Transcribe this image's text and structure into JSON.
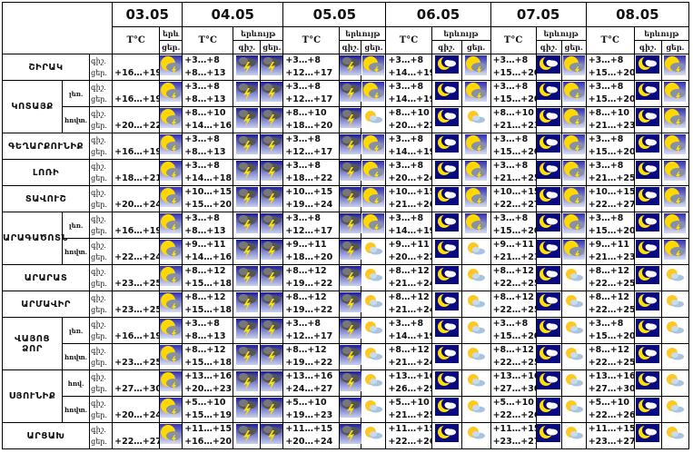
{
  "header": {
    "dates": [
      "03.05",
      "04.05",
      "05.05",
      "06.05",
      "07.05",
      "08.05"
    ],
    "temp_label": "T°C",
    "phenomenon_label": "երևույթ",
    "phenomenon_label_short": "երև",
    "night_label": "գիշ.",
    "day_label": "ցեր."
  },
  "row_labels": {
    "night": "գիշ.",
    "day": "ցեր."
  },
  "regions": [
    {
      "name": "ՇԻՐԱԿ",
      "subs": [
        null
      ]
    },
    {
      "name": "ԿՈՏԱՅՔ",
      "subs": [
        "լեռ.",
        "հովտ."
      ]
    },
    {
      "name": "ԳԵՂԱՐՔՈՒՆԻՔ",
      "subs": [
        null
      ]
    },
    {
      "name": "ԼՈՌԻ",
      "subs": [
        null
      ]
    },
    {
      "name": "ՏԱՎՈՒՇ",
      "subs": [
        null
      ]
    },
    {
      "name": "ԱՐԱԳԱԾՈՏՆ",
      "subs": [
        "լեռ.",
        "հովտ."
      ]
    },
    {
      "name": "ԱՐԱՐԱՏ",
      "subs": [
        null
      ]
    },
    {
      "name": "ԱՐՄԱՎԻՐ",
      "subs": [
        null
      ]
    },
    {
      "name": "ՎԱՅՈՑ ՁՈՐ",
      "subs": [
        "լեռ.",
        "հովտ."
      ]
    },
    {
      "name": "ՍՅՈՒՆԻՔ",
      "subs": [
        "հով.",
        "հովտ."
      ]
    },
    {
      "name": "ԱՐՑԱԽ",
      "subs": [
        null
      ]
    }
  ],
  "rows": [
    {
      "d0": "+16…+19",
      "days": [
        [
          "+3…+8",
          "+8…+13"
        ],
        [
          "+3…+8",
          "+12…+17"
        ],
        [
          "+3…+8",
          "+14…+19"
        ],
        [
          "+3…+8",
          "+15…+20"
        ],
        [
          "+3…+8",
          "+15…+20"
        ]
      ],
      "icons": [
        "sun-storm",
        "storm",
        "storm",
        "storm",
        "sun-storm",
        "moon-cloud",
        "sun-storm",
        "moon-cloud",
        "sun-storm",
        "moon-cloud",
        "sun-storm"
      ]
    },
    {
      "d0": "+16…+19",
      "days": [
        [
          "+3…+8",
          "+8…+13"
        ],
        [
          "+3…+8",
          "+12…+17"
        ],
        [
          "+3…+8",
          "+14…+19"
        ],
        [
          "+3…+8",
          "+15…+20"
        ],
        [
          "+3…+8",
          "+15…+20"
        ]
      ],
      "icons": [
        "sun-storm",
        "storm",
        "storm",
        "storm",
        "sun-storm",
        "moon-cloud",
        "sun-storm",
        "moon-cloud",
        "sun-storm",
        "moon-cloud",
        "sun-storm"
      ]
    },
    {
      "d0": "+20…+22",
      "days": [
        [
          "+8…+10",
          "+14…+16"
        ],
        [
          "+8…+10",
          "+18…+20"
        ],
        [
          "+8…+10",
          "+20…+22"
        ],
        [
          "+8…+10",
          "+21…+23"
        ],
        [
          "+8…+10",
          "+21…+23"
        ]
      ],
      "icons": [
        "sun-storm",
        "storm",
        "storm",
        "storm",
        "sun-cloud",
        "moon-cloud",
        "sun-cloud",
        "moon-cloud",
        "sun-storm",
        "moon-cloud",
        "sun-storm"
      ]
    },
    {
      "d0": "+16…+19",
      "days": [
        [
          "+3…+8",
          "+8…+13"
        ],
        [
          "+3…+8",
          "+12…+17"
        ],
        [
          "+3…+8",
          "+14…+19"
        ],
        [
          "+3…+8",
          "+15…+20"
        ],
        [
          "+3…+8",
          "+15…+20"
        ]
      ],
      "icons": [
        "sun-storm",
        "storm",
        "storm",
        "storm",
        "sun-storm",
        "moon-cloud",
        "sun-storm",
        "moon-cloud",
        "sun-storm",
        "moon-cloud",
        "sun-storm"
      ]
    },
    {
      "d0": "+18…+21",
      "days": [
        [
          "+3…+8",
          "+14…+18"
        ],
        [
          "+3…+8",
          "+18…+22"
        ],
        [
          "+3…+8",
          "+20…+24"
        ],
        [
          "+3…+8",
          "+21…+25"
        ],
        [
          "+3…+8",
          "+21…+25"
        ]
      ],
      "icons": [
        "sun-storm",
        "storm",
        "storm",
        "storm",
        "sun-storm",
        "moon-cloud",
        "sun-storm",
        "moon-cloud",
        "sun-storm",
        "moon-cloud",
        "sun-storm"
      ]
    },
    {
      "d0": "+20…+24",
      "days": [
        [
          "+10…+15",
          "+15…+20"
        ],
        [
          "+10…+15",
          "+19…+24"
        ],
        [
          "+10…+15",
          "+21…+26"
        ],
        [
          "+10…+15",
          "+22…+27"
        ],
        [
          "+10…+15",
          "+22…+27"
        ]
      ],
      "icons": [
        "sun-storm",
        "storm",
        "storm",
        "storm",
        "sun-storm",
        "moon-cloud",
        "sun-storm",
        "moon-cloud",
        "sun-storm",
        "moon-cloud",
        "sun-storm"
      ]
    },
    {
      "d0": "+16…+19",
      "days": [
        [
          "+3…+8",
          "+8…+13"
        ],
        [
          "+3…+8",
          "+12…+17"
        ],
        [
          "+3…+8",
          "+14…+19"
        ],
        [
          "+3…+8",
          "+15…+20"
        ],
        [
          "+3…+8",
          "+15…+20"
        ]
      ],
      "icons": [
        "sun-storm",
        "storm",
        "storm",
        "storm",
        "sun-storm",
        "moon-cloud",
        "sun-storm",
        "moon-cloud",
        "sun-storm",
        "moon-cloud",
        "sun-storm"
      ]
    },
    {
      "d0": "+22…+24",
      "days": [
        [
          "+9…+11",
          "+14…+16"
        ],
        [
          "+9…+11",
          "+18…+20"
        ],
        [
          "+9…+11",
          "+20…+22"
        ],
        [
          "+9…+11",
          "+21…+23"
        ],
        [
          "+9…+11",
          "+21…+23"
        ]
      ],
      "icons": [
        "sun-storm",
        "storm",
        "storm",
        "storm",
        "sun-cloud",
        "moon-cloud",
        "sun-cloud",
        "moon-cloud",
        "sun-storm",
        "moon-cloud",
        "sun-storm"
      ]
    },
    {
      "d0": "+23…+25",
      "days": [
        [
          "+8…+12",
          "+15…+18"
        ],
        [
          "+8…+12",
          "+19…+22"
        ],
        [
          "+8…+12",
          "+21…+24"
        ],
        [
          "+8…+12",
          "+22…+25"
        ],
        [
          "+8…+12",
          "+22…+25"
        ]
      ],
      "icons": [
        "sun-storm",
        "storm",
        "storm",
        "storm",
        "sun-cloud",
        "moon-cloud",
        "sun-cloud",
        "moon-cloud",
        "sun-cloud",
        "moon-cloud",
        "sun-cloud"
      ]
    },
    {
      "d0": "+23…+25",
      "days": [
        [
          "+8…+12",
          "+15…+18"
        ],
        [
          "+8…+12",
          "+19…+22"
        ],
        [
          "+8…+12",
          "+21…+24"
        ],
        [
          "+8…+12",
          "+22…+25"
        ],
        [
          "+8…+12",
          "+22…+25"
        ]
      ],
      "icons": [
        "sun-storm",
        "storm",
        "storm",
        "storm",
        "sun-cloud",
        "moon-cloud",
        "sun-cloud",
        "moon-cloud",
        "sun-cloud",
        "moon-cloud",
        "sun-cloud"
      ]
    },
    {
      "d0": "+16…+19",
      "days": [
        [
          "+3…+8",
          "+8…+13"
        ],
        [
          "+3…+8",
          "+12…+17"
        ],
        [
          "+3…+8",
          "+14…+19"
        ],
        [
          "+3…+8",
          "+15…+20"
        ],
        [
          "+3…+8",
          "+15…+20"
        ]
      ],
      "icons": [
        "sun-storm",
        "storm",
        "storm",
        "storm",
        "sun-cloud",
        "moon-cloud",
        "sun-cloud",
        "moon-cloud",
        "sun-cloud",
        "moon-cloud",
        "sun-cloud"
      ]
    },
    {
      "d0": "+23…+25",
      "days": [
        [
          "+8…+12",
          "+15…+18"
        ],
        [
          "+8…+12",
          "+19…+22"
        ],
        [
          "+8…+12",
          "+21…+24"
        ],
        [
          "+8…+12",
          "+22…+25"
        ],
        [
          "+8…+12",
          "+22…+25"
        ]
      ],
      "icons": [
        "sun-storm",
        "storm",
        "storm",
        "storm",
        "sun-cloud",
        "moon-cloud",
        "sun-cloud",
        "moon-cloud",
        "sun-cloud",
        "moon-cloud",
        "sun-cloud"
      ]
    },
    {
      "d0": "+27…+30",
      "days": [
        [
          "+13…+16",
          "+20…+23"
        ],
        [
          "+13…+16",
          "+24…+27"
        ],
        [
          "+13…+16",
          "+26…+29"
        ],
        [
          "+13…+16",
          "+27…+30"
        ],
        [
          "+13…+16",
          "+27…+30"
        ]
      ],
      "icons": [
        "sun-storm",
        "storm",
        "storm",
        "storm",
        "sun-cloud",
        "moon-cloud",
        "sun-cloud",
        "moon-cloud",
        "sun-cloud",
        "moon-cloud",
        "sun-cloud"
      ]
    },
    {
      "d0": "+20…+24",
      "days": [
        [
          "+5…+10",
          "+15…+19"
        ],
        [
          "+5…+10",
          "+19…+23"
        ],
        [
          "+5…+10",
          "+21…+25"
        ],
        [
          "+5…+10",
          "+22…+26"
        ],
        [
          "+5…+10",
          "+22…+26"
        ]
      ],
      "icons": [
        "sun-storm",
        "storm",
        "storm",
        "storm",
        "sun-cloud",
        "moon-cloud",
        "sun-cloud",
        "moon-cloud",
        "sun-cloud",
        "moon-cloud",
        "sun-cloud"
      ]
    },
    {
      "d0": "+22…+27",
      "days": [
        [
          "+11…+15",
          "+16…+20"
        ],
        [
          "+11…+15",
          "+20…+24"
        ],
        [
          "+11…+15",
          "+22…+26"
        ],
        [
          "+11…+15",
          "+23…+27"
        ],
        [
          "+11…+15",
          "+23…+27"
        ]
      ],
      "icons": [
        "sun-storm",
        "storm",
        "storm",
        "storm",
        "sun-cloud",
        "moon-cloud",
        "sun-cloud",
        "moon-cloud",
        "sun-cloud",
        "moon-cloud",
        "sun-cloud"
      ]
    }
  ],
  "colors": {
    "border": "#000000",
    "storm_bg": "#2a2aa0",
    "night_bg": "#0a0a80",
    "sun": "#ffd800"
  }
}
